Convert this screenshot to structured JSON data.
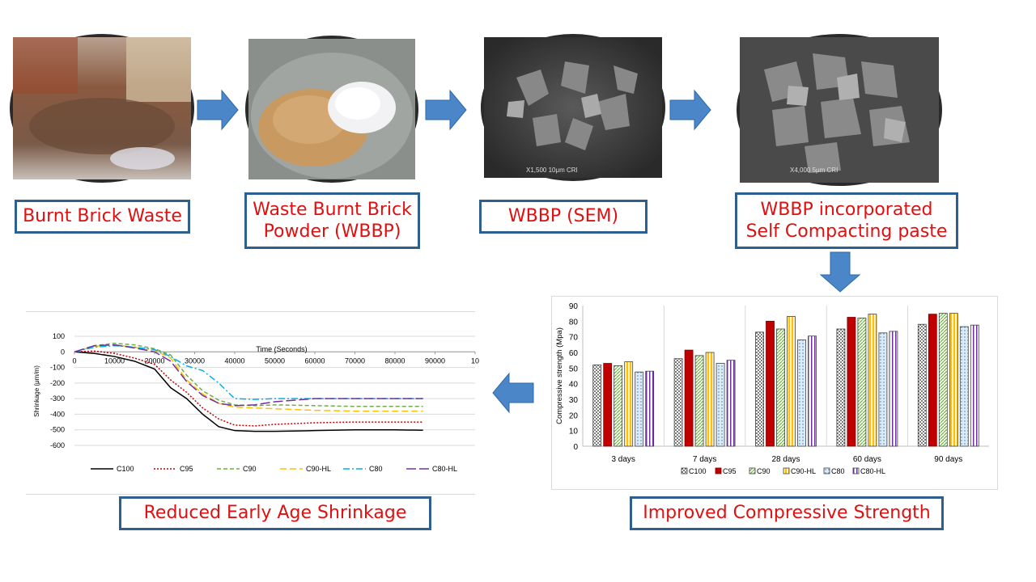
{
  "labels": {
    "brick_waste": "Burnt Brick Waste",
    "wbbp": "Waste Burnt Brick\nPowder (WBBP)",
    "sem": "WBBP (SEM)",
    "paste": "WBBP incorporated\nSelf Compacting paste",
    "strength": "Improved Compressive Strength",
    "shrinkage": "Reduced Early Age Shrinkage"
  },
  "sem_captions": {
    "left": "X1,500  10μm  CRI",
    "right": "X4,000  5μm  CRI"
  },
  "colors": {
    "arrow": "#4a86c8",
    "box_border": "#2e5f8f",
    "label_text": "#e01010"
  },
  "chart_data": [
    {
      "type": "line",
      "ylabel": "Shrinkage (μm/m)",
      "xlabel": "Time (Seconds)",
      "x_ticks": [
        "0",
        "10000",
        "20000",
        "30000",
        "40000",
        "50000",
        "60000",
        "70000",
        "80000",
        "90000",
        "10"
      ],
      "y_ticks": [
        "100",
        "0",
        "-100",
        "-200",
        "-300",
        "-400",
        "-500",
        "-600"
      ],
      "xlim": [
        0,
        100000
      ],
      "ylim": [
        -600,
        100
      ],
      "series": [
        {
          "name": "C100",
          "color": "#000000",
          "dash": "",
          "x": [
            0,
            5000,
            10000,
            15000,
            20000,
            24000,
            28000,
            32000,
            36000,
            40000,
            45000,
            50000,
            60000,
            70000,
            80000,
            87000
          ],
          "y": [
            0,
            -10,
            -30,
            -60,
            -110,
            -230,
            -300,
            -400,
            -480,
            -505,
            -510,
            -510,
            -505,
            -500,
            -500,
            -503
          ]
        },
        {
          "name": "C95",
          "color": "#c00000",
          "dash": "2,2",
          "x": [
            0,
            5000,
            10000,
            15000,
            20000,
            24000,
            28000,
            32000,
            36000,
            40000,
            45000,
            50000,
            60000,
            70000,
            80000,
            87000
          ],
          "y": [
            0,
            5,
            -10,
            -40,
            -80,
            -180,
            -260,
            -360,
            -430,
            -470,
            -475,
            -465,
            -455,
            -450,
            -450,
            -450
          ]
        },
        {
          "name": "C90",
          "color": "#70ad47",
          "dash": "5,3",
          "x": [
            0,
            5000,
            10000,
            15000,
            20000,
            24000,
            28000,
            32000,
            36000,
            40000,
            45000,
            50000,
            60000,
            70000,
            80000,
            87000
          ],
          "y": [
            0,
            40,
            55,
            45,
            20,
            -20,
            -150,
            -250,
            -310,
            -340,
            -345,
            -340,
            -345,
            -350,
            -350,
            -350
          ]
        },
        {
          "name": "C90-HL",
          "color": "#ffc000",
          "dash": "8,4",
          "x": [
            0,
            5000,
            10000,
            15000,
            20000,
            24000,
            28000,
            32000,
            36000,
            40000,
            45000,
            50000,
            60000,
            70000,
            80000,
            87000
          ],
          "y": [
            0,
            35,
            45,
            30,
            10,
            -40,
            -180,
            -270,
            -330,
            -355,
            -360,
            -365,
            -375,
            -380,
            -380,
            -380
          ]
        },
        {
          "name": "C80",
          "color": "#00b0f0",
          "dash": "8,3,2,3",
          "x": [
            0,
            5000,
            10000,
            15000,
            20000,
            24000,
            28000,
            32000,
            36000,
            40000,
            45000,
            50000,
            60000,
            70000,
            80000,
            87000
          ],
          "y": [
            0,
            30,
            40,
            30,
            15,
            -30,
            -90,
            -120,
            -200,
            -300,
            -305,
            -300,
            -300,
            -300,
            -300,
            -300
          ]
        },
        {
          "name": "C80-HL",
          "color": "#7030a0",
          "dash": "12,4",
          "x": [
            0,
            5000,
            10000,
            15000,
            20000,
            24000,
            28000,
            32000,
            36000,
            40000,
            45000,
            50000,
            60000,
            70000,
            80000,
            87000
          ],
          "y": [
            0,
            40,
            45,
            25,
            0,
            -60,
            -190,
            -280,
            -330,
            -345,
            -340,
            -320,
            -300,
            -300,
            -300,
            -300
          ]
        }
      ]
    },
    {
      "type": "bar",
      "ylabel": "Compressive strength (Mpa)",
      "ylim": [
        0,
        90
      ],
      "y_ticks": [
        "0",
        "10",
        "20",
        "30",
        "40",
        "50",
        "60",
        "70",
        "80",
        "90"
      ],
      "categories": [
        "3 days",
        "7 days",
        "28 days",
        "60 days",
        "90 days"
      ],
      "series": [
        {
          "name": "C100",
          "color": "#7f7f7f",
          "pattern": "dots",
          "values": [
            52,
            56,
            73,
            75,
            78
          ]
        },
        {
          "name": "C95",
          "color": "#c00000",
          "pattern": "solid",
          "values": [
            53,
            61.5,
            80,
            82.5,
            84.5
          ]
        },
        {
          "name": "C90",
          "color": "#a9d18e",
          "pattern": "diag",
          "values": [
            51.5,
            58,
            75,
            82,
            85
          ]
        },
        {
          "name": "C90-HL",
          "color": "#ffd966",
          "pattern": "vert",
          "values": [
            54,
            60,
            83,
            84.5,
            85
          ]
        },
        {
          "name": "C80",
          "color": "#9dc3e6",
          "pattern": "dots2",
          "values": [
            47.5,
            53,
            68,
            72.5,
            76.5
          ]
        },
        {
          "name": "C80-HL",
          "color": "#b4a7d6",
          "pattern": "vert2",
          "values": [
            48,
            55,
            70.5,
            73.5,
            77.5
          ]
        }
      ]
    }
  ]
}
